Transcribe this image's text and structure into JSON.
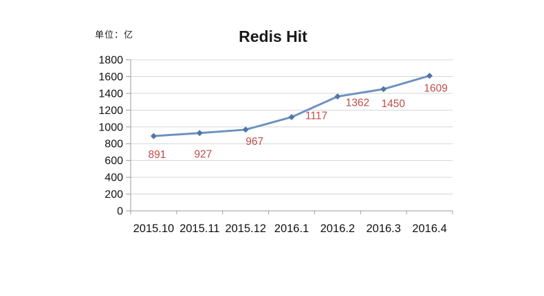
{
  "header": {
    "unit_label": "单位：亿",
    "title": "Redis Hit"
  },
  "chart_data": {
    "type": "line",
    "title": "Redis Hit",
    "unit_label": "单位：亿",
    "categories": [
      "2015.10",
      "2015.11",
      "2015.12",
      "2016.1",
      "2016.2",
      "2016.3",
      "2016.4"
    ],
    "series": [
      {
        "name": "Redis Hit",
        "values": [
          891,
          927,
          967,
          1117,
          1362,
          1450,
          1609
        ]
      }
    ],
    "data_labels": [
      891,
      927,
      967,
      1117,
      1362,
      1450,
      1609
    ],
    "y_ticks": [
      0,
      200,
      400,
      600,
      800,
      1000,
      1200,
      1400,
      1600,
      1800
    ],
    "ylim": [
      0,
      1800
    ],
    "ytick_step": 200,
    "grid": true,
    "legend": "none",
    "marker": "diamond",
    "colors": {
      "line": "#6D92BE",
      "marker": "#4F76A6",
      "data_label": "#BE4B48",
      "gridline": "#D5D5D5",
      "axis": "#9B9B9B",
      "text": "#111111",
      "background": "#ffffff"
    }
  }
}
